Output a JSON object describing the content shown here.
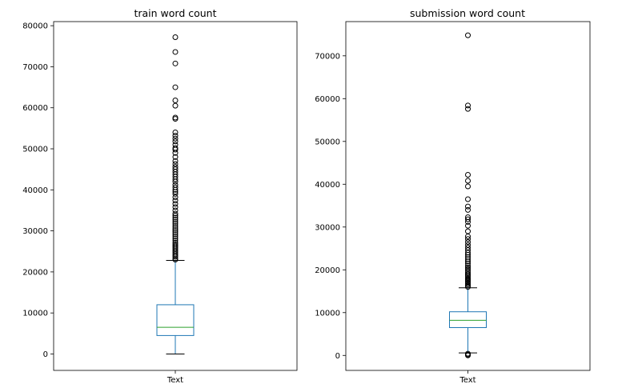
{
  "chart_data": [
    {
      "type": "box",
      "title": "train word count",
      "xlabel": "",
      "ylabel": "",
      "categories": [
        "Text"
      ],
      "ylim": [
        -4000,
        81000
      ],
      "yticks": [
        0,
        10000,
        20000,
        30000,
        40000,
        50000,
        60000,
        70000,
        80000
      ],
      "box": {
        "whisker_low": 0,
        "q1": 4500,
        "median": 6500,
        "q3": 12000,
        "whisker_high": 22800
      },
      "outliers": [
        23000,
        23300,
        23700,
        24000,
        24400,
        24800,
        25200,
        25600,
        26000,
        26400,
        26800,
        27200,
        27700,
        28200,
        28700,
        29200,
        29700,
        30200,
        30700,
        31200,
        31700,
        32200,
        32700,
        33200,
        33700,
        34200,
        35000,
        35800,
        36600,
        37400,
        38200,
        39000,
        39500,
        40000,
        40600,
        41200,
        42000,
        42600,
        43200,
        43800,
        44400,
        45000,
        45600,
        46300,
        47000,
        48000,
        49000,
        49800,
        50200,
        51000,
        51800,
        52500,
        53200,
        54000,
        57300,
        57600,
        60500,
        61800,
        65000,
        70800,
        73600,
        77200
      ],
      "grid": false
    },
    {
      "type": "box",
      "title": "submission word count",
      "xlabel": "",
      "ylabel": "",
      "categories": [
        "Text"
      ],
      "ylim": [
        -3500,
        78000
      ],
      "yticks": [
        0,
        10000,
        20000,
        30000,
        40000,
        50000,
        60000,
        70000
      ],
      "box": {
        "whisker_low": 600,
        "q1": 6500,
        "median": 8200,
        "q3": 10200,
        "whisker_high": 15800
      },
      "outliers": [
        16000,
        16300,
        16600,
        16900,
        17200,
        17500,
        17800,
        18100,
        18400,
        18700,
        19000,
        19400,
        19800,
        20200,
        20600,
        21000,
        21500,
        22000,
        22500,
        23000,
        23500,
        24000,
        24600,
        25200,
        25800,
        26500,
        27200,
        27800,
        29000,
        30300,
        31200,
        31800,
        32300,
        34000,
        34800,
        36500,
        39500,
        40800,
        42200,
        57600,
        58400,
        74800,
        0,
        200,
        400
      ],
      "grid": false
    }
  ]
}
